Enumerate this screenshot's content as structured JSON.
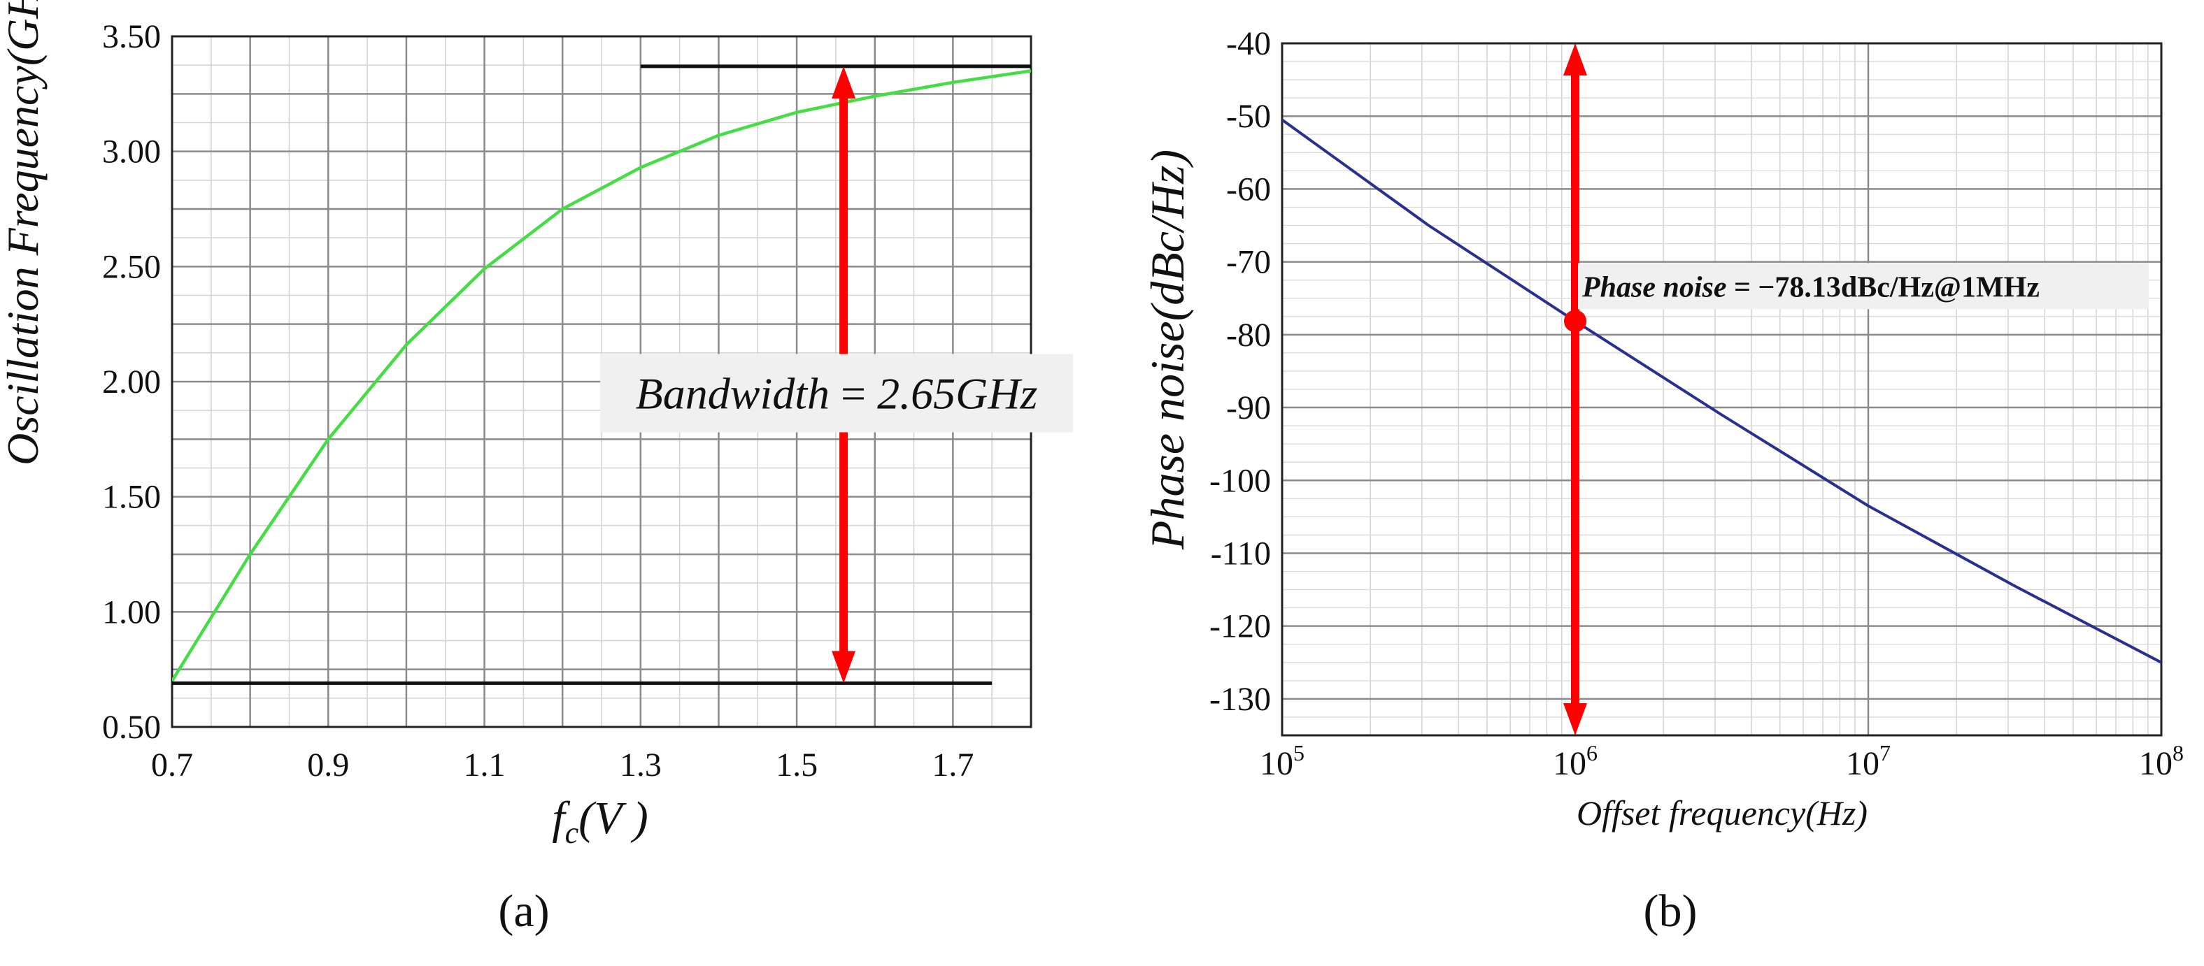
{
  "chart_data": [
    {
      "type": "line",
      "panel_label": "(a)",
      "title": "",
      "xlabel_main": "f",
      "xlabel_sub": "c",
      "xlabel_rest": "(V )",
      "ylabel": "Oscillation Frequency(GHz)",
      "xlim": [
        0.7,
        1.8
      ],
      "ylim": [
        0.5,
        3.5
      ],
      "x_ticks": [
        0.7,
        0.9,
        1.1,
        1.3,
        1.5,
        1.7
      ],
      "x_tick_labels": [
        "0.7",
        "0.9",
        "1.1",
        "1.3",
        "1.5",
        "1.7"
      ],
      "y_ticks": [
        0.5,
        1.0,
        1.5,
        2.0,
        2.5,
        3.0,
        3.5
      ],
      "y_tick_labels": [
        "0.50",
        "1.00",
        "1.50",
        "2.00",
        "2.50",
        "3.00",
        "3.50"
      ],
      "grid": true,
      "series": [
        {
          "name": "oscillation frequency",
          "color": "#44dd44",
          "x": [
            0.7,
            0.8,
            0.9,
            1.0,
            1.1,
            1.2,
            1.3,
            1.4,
            1.5,
            1.6,
            1.7,
            1.8
          ],
          "values": [
            0.7,
            1.25,
            1.75,
            2.16,
            2.49,
            2.75,
            2.93,
            3.07,
            3.17,
            3.24,
            3.3,
            3.35
          ]
        }
      ],
      "reference_lines": [
        {
          "y": 0.69,
          "x_from": 0.7,
          "x_to": 1.75,
          "color": "#111111"
        },
        {
          "y": 3.37,
          "x_from": 1.3,
          "x_to": 1.8,
          "color": "#111111"
        }
      ],
      "arrow": {
        "x": 1.56,
        "y_from": 0.69,
        "y_to": 3.37,
        "color": "#ff0000"
      },
      "annotation": {
        "prefix": "Bandwidth",
        "eq": " = ",
        "value": "2.65GHz",
        "x": 1.56,
        "y": 1.95
      }
    },
    {
      "type": "line",
      "panel_label": "(b)",
      "title": "",
      "xlabel": "Offset frequency(Hz)",
      "ylabel": "Phase noise(dBc/Hz)",
      "x_scale": "log",
      "xlim_exp": [
        5,
        8
      ],
      "ylim": [
        -135,
        -40
      ],
      "x_tick_exps": [
        5,
        6,
        7,
        8
      ],
      "x_tick_base": "10",
      "x_tick_exp_labels": [
        "5",
        "6",
        "7",
        "8"
      ],
      "y_ticks": [
        -40,
        -50,
        -60,
        -70,
        -80,
        -90,
        -100,
        -110,
        -120,
        -130
      ],
      "y_tick_labels": [
        "-40",
        "-50",
        "-60",
        "-70",
        "-80",
        "-90",
        "-100",
        "-110",
        "-120",
        "-130"
      ],
      "grid": true,
      "series": [
        {
          "name": "phase noise",
          "color": "#2b2f8f",
          "x_exp": [
            5,
            5.5,
            6,
            6.5,
            7,
            7.5,
            8
          ],
          "values": [
            -50.5,
            -65.0,
            -78.13,
            -91.0,
            -103.5,
            -114.5,
            -125.0
          ]
        }
      ],
      "marker": {
        "x_exp": 6.0,
        "y": -78.13,
        "color": "#ff0000"
      },
      "arrow": {
        "x_exp": 6.0,
        "y_from": -135,
        "y_to": -40,
        "color": "#ff0000"
      },
      "annotation": {
        "prefix": "Phase noise",
        "eq": " = ",
        "value": "−78.13dBc/Hz@1MHz",
        "x_exp": 6.0,
        "y": -74
      }
    }
  ]
}
